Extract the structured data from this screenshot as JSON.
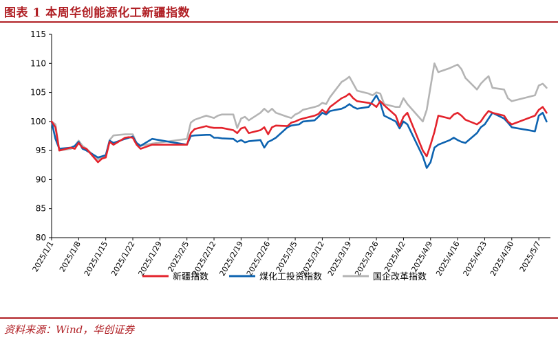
{
  "header": {
    "title": "图表 1 本周华创能源化工新疆指数"
  },
  "footer": {
    "source": "资料来源：Wind，华创证券"
  },
  "colors": {
    "accent": "#b01f24",
    "xinjiang": "#e3232c",
    "coal": "#0d63b0",
    "soe": "#b4b4b4"
  },
  "chart_data": {
    "type": "line",
    "title": "",
    "xlabel": "",
    "ylabel": "",
    "ylim": [
      80,
      115
    ],
    "yticks": [
      80,
      85,
      90,
      95,
      100,
      105,
      110,
      115
    ],
    "x_ticks": [
      "2025/1/1",
      "2025/1/8",
      "2025/1/15",
      "2025/1/22",
      "2025/1/29",
      "2025/2/5",
      "2025/2/12",
      "2025/2/19",
      "2025/2/26",
      "2025/3/5",
      "2025/3/12",
      "2025/3/19",
      "2025/3/26",
      "2025/4/2",
      "2025/4/9",
      "2025/4/16",
      "2025/4/23",
      "2025/4/30",
      "2025/5/7"
    ],
    "x": [
      "2025/1/1",
      "2025/1/2",
      "2025/1/3",
      "2025/1/6",
      "2025/1/7",
      "2025/1/8",
      "2025/1/9",
      "2025/1/10",
      "2025/1/13",
      "2025/1/14",
      "2025/1/15",
      "2025/1/16",
      "2025/1/17",
      "2025/1/20",
      "2025/1/21",
      "2025/1/22",
      "2025/1/23",
      "2025/1/24",
      "2025/1/27",
      "2025/2/5",
      "2025/2/6",
      "2025/2/7",
      "2025/2/10",
      "2025/2/11",
      "2025/2/12",
      "2025/2/13",
      "2025/2/14",
      "2025/2/17",
      "2025/2/18",
      "2025/2/19",
      "2025/2/20",
      "2025/2/21",
      "2025/2/24",
      "2025/2/25",
      "2025/2/26",
      "2025/2/27",
      "2025/2/28",
      "2025/3/3",
      "2025/3/4",
      "2025/3/5",
      "2025/3/6",
      "2025/3/7",
      "2025/3/10",
      "2025/3/11",
      "2025/3/12",
      "2025/3/13",
      "2025/3/14",
      "2025/3/17",
      "2025/3/18",
      "2025/3/19",
      "2025/3/20",
      "2025/3/21",
      "2025/3/24",
      "2025/3/25",
      "2025/3/26",
      "2025/3/27",
      "2025/3/28",
      "2025/3/31",
      "2025/4/1",
      "2025/4/2",
      "2025/4/3",
      "2025/4/7",
      "2025/4/8",
      "2025/4/9",
      "2025/4/10",
      "2025/4/11",
      "2025/4/14",
      "2025/4/15",
      "2025/4/16",
      "2025/4/17",
      "2025/4/18",
      "2025/4/21",
      "2025/4/22",
      "2025/4/23",
      "2025/4/24",
      "2025/4/25",
      "2025/4/28",
      "2025/4/29",
      "2025/4/30",
      "2025/5/6",
      "2025/5/7",
      "2025/5/8",
      "2025/5/9"
    ],
    "series": [
      {
        "name": "新疆指数",
        "color": "#e3232c",
        "values": [
          100,
          99,
          95,
          95.5,
          95.3,
          96.3,
          95.5,
          95.3,
          93,
          93.6,
          93.8,
          96.5,
          96,
          97.2,
          97.3,
          97.2,
          96,
          95.3,
          96,
          96,
          98,
          98.7,
          99.2,
          99,
          98.9,
          98.9,
          98.9,
          98.5,
          98,
          98.8,
          99,
          98,
          98.5,
          99,
          97.8,
          99,
          99.3,
          99.2,
          99.8,
          100,
          100.3,
          100.5,
          101,
          101.3,
          102,
          101.5,
          102.5,
          104,
          104.3,
          104.8,
          104,
          103.5,
          103.2,
          103,
          102.5,
          103.5,
          102.8,
          101,
          99.2,
          100.8,
          101.5,
          95,
          94,
          96,
          98.2,
          101,
          100.5,
          101.2,
          101.5,
          101,
          100.3,
          99.5,
          100,
          101,
          101.8,
          101.5,
          101,
          100,
          99.5,
          101,
          102,
          102.5,
          101.5
        ]
      },
      {
        "name": "煤化工投资指数",
        "color": "#0d63b0",
        "values": [
          100,
          97,
          95.3,
          95.5,
          95.8,
          96.5,
          95.3,
          95,
          93.8,
          94,
          94.2,
          96.7,
          96.3,
          97,
          97.2,
          97.4,
          96.3,
          95.8,
          97,
          96,
          97.5,
          97.6,
          97.7,
          97.7,
          97.2,
          97.2,
          97.1,
          97,
          96.5,
          96.8,
          96.4,
          96.6,
          96.8,
          95.5,
          96.5,
          96.8,
          97.2,
          99,
          99.3,
          99.4,
          99.5,
          100,
          100.2,
          100.8,
          101.5,
          101.2,
          101.8,
          102.2,
          102.5,
          103,
          102.5,
          102.2,
          102.5,
          103.5,
          104.5,
          103.2,
          101,
          100,
          98.8,
          100,
          99.5,
          94,
          92,
          93,
          95.5,
          96,
          96.8,
          97.2,
          96.8,
          96.5,
          96.3,
          98,
          99,
          99.5,
          100.5,
          101.5,
          100.5,
          99.8,
          99,
          98.3,
          101,
          101.5,
          100
        ]
      },
      {
        "name": "国企改革指数",
        "color": "#b4b4b4",
        "values": [
          100,
          99.5,
          95,
          95.3,
          95.8,
          96.7,
          95.8,
          95.3,
          93.5,
          93.8,
          94,
          96.8,
          97.6,
          97.8,
          97.8,
          97.8,
          96.2,
          95.8,
          96.2,
          97,
          99.8,
          100.3,
          101,
          100.8,
          100.6,
          101,
          101.2,
          101.2,
          98.9,
          100.5,
          100.8,
          100.2,
          101.5,
          102.2,
          101.6,
          102.2,
          101.5,
          100.8,
          100.6,
          101.2,
          101.5,
          102,
          102.5,
          102.7,
          103.2,
          103,
          104.2,
          106.8,
          107.2,
          107.7,
          106.5,
          105.3,
          104.8,
          104.5,
          105,
          104.8,
          103,
          102.5,
          102.5,
          104,
          103,
          100,
          102,
          106,
          110,
          108.5,
          109.2,
          109.5,
          109.8,
          109,
          107.5,
          105.5,
          106.5,
          107.2,
          107.8,
          105.8,
          105.5,
          104,
          103.5,
          104.5,
          106.2,
          106.5,
          105.8
        ]
      }
    ],
    "legend": {
      "position": "bottom"
    },
    "grid": false
  }
}
